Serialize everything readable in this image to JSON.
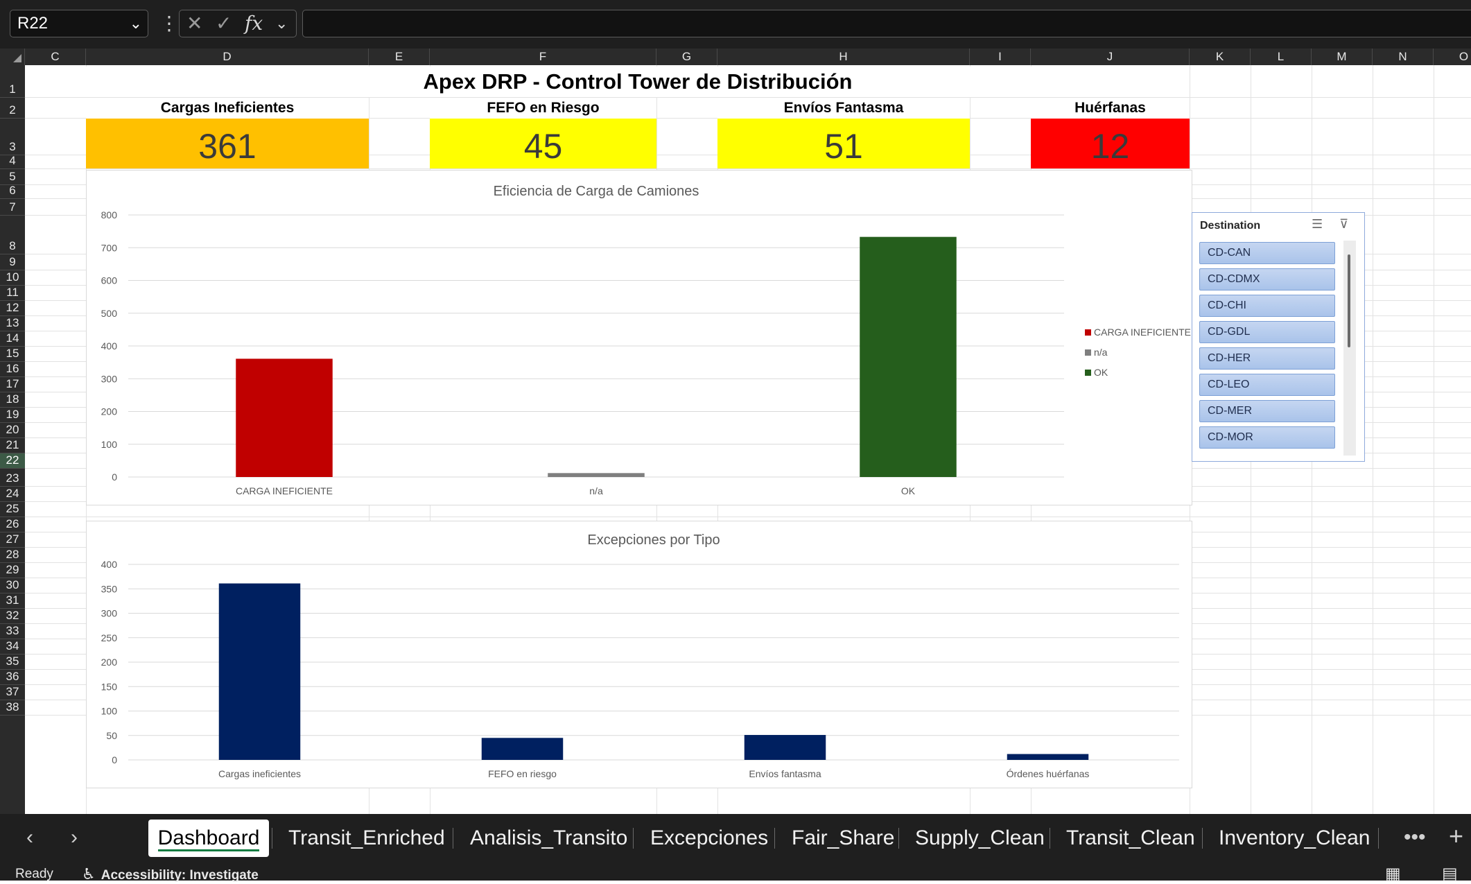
{
  "formula_bar": {
    "name_box": "R22",
    "cancel_icon": "✕",
    "enter_icon": "✓",
    "function_label": "fx",
    "formula": ""
  },
  "columns": [
    "C",
    "D",
    "E",
    "F",
    "G",
    "H",
    "I",
    "J",
    "K",
    "L",
    "M",
    "N",
    "O"
  ],
  "rows": [
    "1",
    "2",
    "3",
    "4",
    "5",
    "6",
    "7",
    "8",
    "9",
    "10",
    "11",
    "12",
    "13",
    "14",
    "15",
    "16",
    "17",
    "18",
    "19",
    "20",
    "21",
    "22",
    "23",
    "24",
    "25",
    "26",
    "27",
    "28",
    "29",
    "30",
    "31",
    "32",
    "33",
    "34",
    "35",
    "36",
    "37",
    "38"
  ],
  "selected_row": "22",
  "dashboard": {
    "title": "Apex DRP  -  Control Tower de Distribución",
    "kpis": [
      {
        "label": "Cargas Ineficientes",
        "value": "361",
        "color": "#FFC000"
      },
      {
        "label": "FEFO en Riesgo",
        "value": "45",
        "color": "#FFFF00"
      },
      {
        "label": "Envíos Fantasma",
        "value": "51",
        "color": "#FFFF00"
      },
      {
        "label": "Huérfanas",
        "value": "12",
        "color": "#FF0000"
      }
    ]
  },
  "chart_data": [
    {
      "type": "bar",
      "title": "Eficiencia de Carga de Camiones",
      "categories": [
        "CARGA INEFICIENTE",
        "n/a",
        "OK"
      ],
      "values": [
        361,
        12,
        733
      ],
      "colors": [
        "#C00000",
        "#7F7F7F",
        "#255E1C"
      ],
      "ylim": [
        0,
        800
      ],
      "yticks": [
        0,
        100,
        200,
        300,
        400,
        500,
        600,
        700,
        800
      ],
      "legend": {
        "position": "right",
        "entries": [
          {
            "name": "CARGA INEFICIENTE",
            "color": "#C00000"
          },
          {
            "name": "n/a",
            "color": "#7F7F7F"
          },
          {
            "name": "OK",
            "color": "#255E1C"
          }
        ]
      },
      "grid": true
    },
    {
      "type": "bar",
      "title": "Excepciones por Tipo",
      "categories": [
        "Cargas ineficientes",
        "FEFO en riesgo",
        "Envíos fantasma",
        "Órdenes huérfanas"
      ],
      "values": [
        361,
        45,
        51,
        12
      ],
      "color": "#002060",
      "ylim": [
        0,
        400
      ],
      "yticks": [
        0,
        50,
        100,
        150,
        200,
        250,
        300,
        350,
        400
      ],
      "grid": true
    }
  ],
  "slicer": {
    "title": "Destination",
    "multi_select_icon": "multi-select-icon",
    "clear_filter_icon": "clear-filter-icon",
    "items": [
      "CD-CAN",
      "CD-CDMX",
      "CD-CHI",
      "CD-GDL",
      "CD-HER",
      "CD-LEO",
      "CD-MER",
      "CD-MOR"
    ]
  },
  "sheet_tabs": {
    "tabs": [
      "Dashboard",
      "Transit_Enriched",
      "Analisis_Transito",
      "Excepciones",
      "Fair_Share",
      "Supply_Clean",
      "Transit_Clean",
      "Inventory_Clean"
    ],
    "active": "Dashboard",
    "more": "•••",
    "add": "+"
  },
  "status_bar": {
    "ready": "Ready",
    "accessibility": "Accessibility: Investigate"
  }
}
